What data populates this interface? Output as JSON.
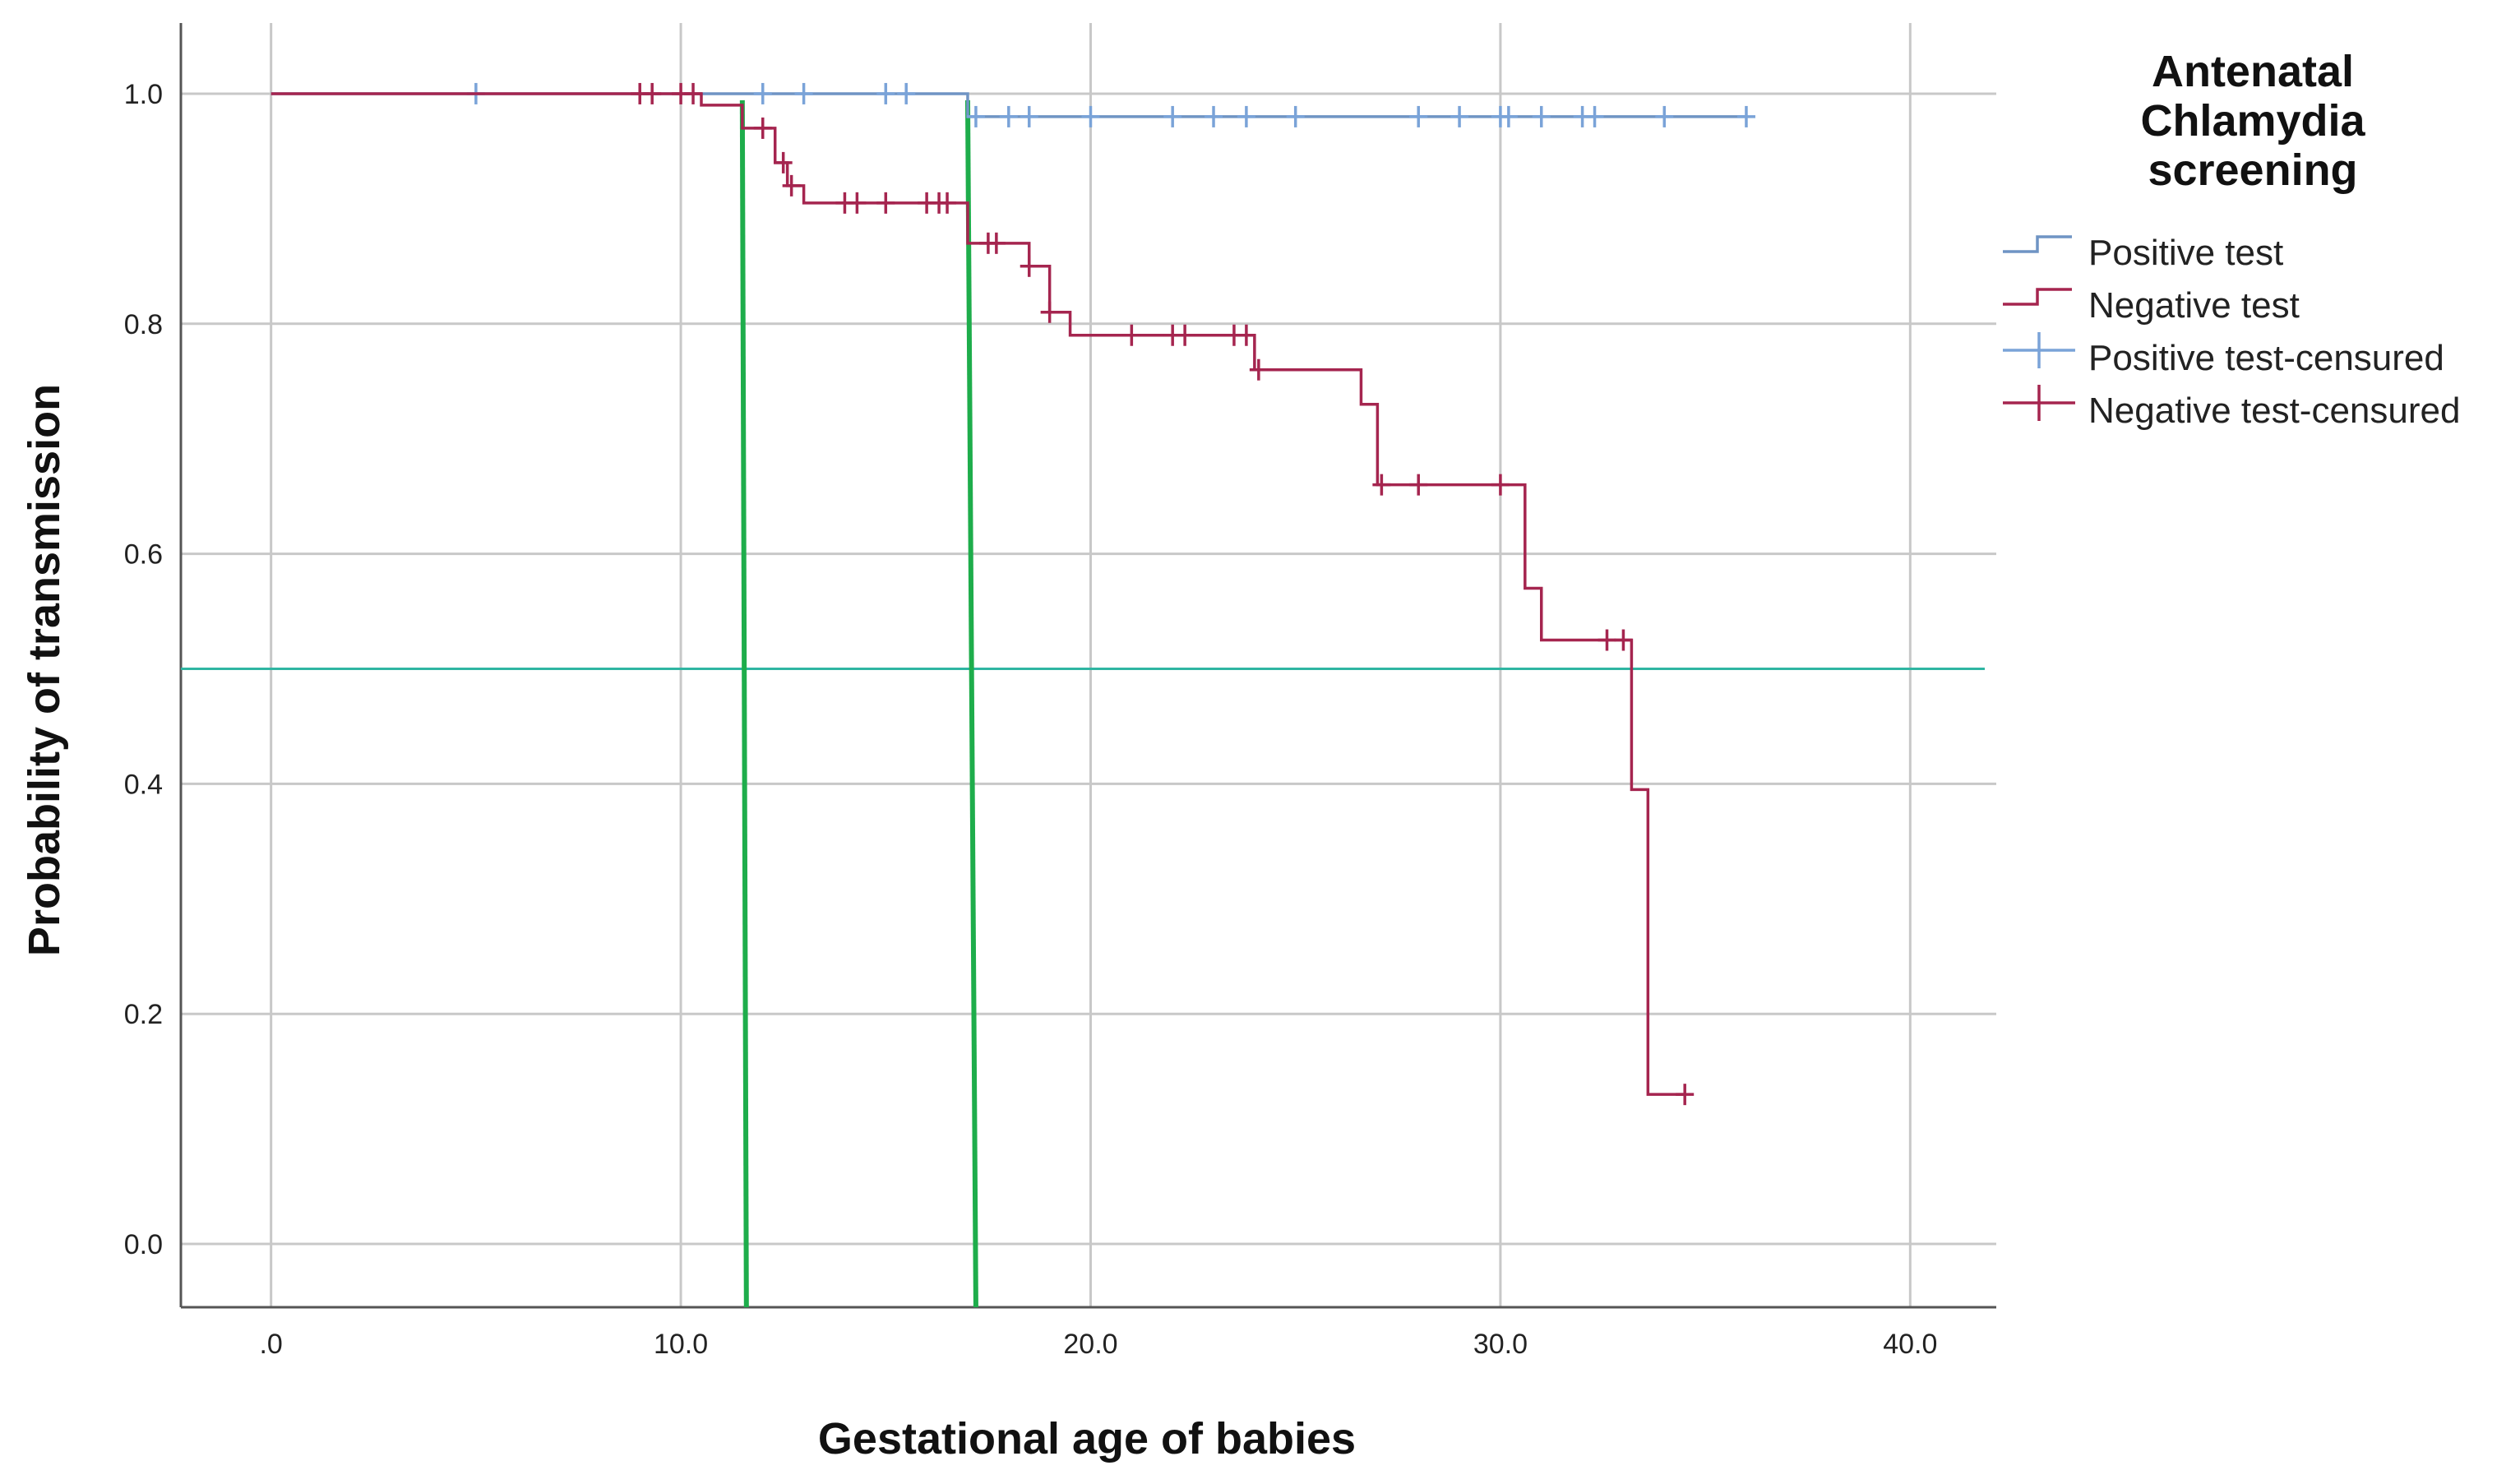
{
  "chart_data": {
    "type": "line",
    "subtype": "kaplan-meier",
    "xlabel": "Gestational age of babies",
    "ylabel": "Probability of transmission",
    "xlim": [
      -2.2,
      42.1
    ],
    "ylim": [
      -0.055,
      1.06
    ],
    "x_ticks": [
      0,
      10,
      20,
      30,
      40
    ],
    "x_tick_labels": [
      ".0",
      "10.0",
      "20.0",
      "30.0",
      "40.0"
    ],
    "y_ticks": [
      0.0,
      0.2,
      0.4,
      0.6,
      0.8,
      1.0
    ],
    "y_tick_labels": [
      "0.0",
      "0.2",
      "0.4",
      "0.6",
      "0.8",
      "1.0"
    ],
    "grid": true,
    "legend": {
      "title_lines": [
        "Antenatal",
        "Chlamydia",
        "screening"
      ],
      "placement": "right",
      "entries": [
        {
          "label": "Positive test",
          "kind": "step",
          "color": "#6f94c4"
        },
        {
          "label": "Negative test",
          "kind": "step",
          "color": "#a5254f"
        },
        {
          "label": "Positive test-censured",
          "kind": "censor",
          "color": "#7aa3d8"
        },
        {
          "label": "Negative test-censured",
          "kind": "censor",
          "color": "#a5254f"
        }
      ]
    },
    "series": [
      {
        "name": "Positive test",
        "color": "#6f94c4",
        "censor_color": "#7aa3d8",
        "steps": [
          [
            0,
            1.0
          ],
          [
            17.0,
            0.98
          ],
          [
            36.0,
            0.98
          ]
        ],
        "censored": [
          [
            5.0,
            1.0
          ],
          [
            12.0,
            1.0
          ],
          [
            13.0,
            1.0
          ],
          [
            15.0,
            1.0
          ],
          [
            15.5,
            1.0
          ],
          [
            17.2,
            0.98
          ],
          [
            18.0,
            0.98
          ],
          [
            18.5,
            0.98
          ],
          [
            20.0,
            0.98
          ],
          [
            22.0,
            0.98
          ],
          [
            23.0,
            0.98
          ],
          [
            23.8,
            0.98
          ],
          [
            25.0,
            0.98
          ],
          [
            28.0,
            0.98
          ],
          [
            29.0,
            0.98
          ],
          [
            30.0,
            0.98
          ],
          [
            30.2,
            0.98
          ],
          [
            31.0,
            0.98
          ],
          [
            32.0,
            0.98
          ],
          [
            32.3,
            0.98
          ],
          [
            34.0,
            0.98
          ],
          [
            36.0,
            0.98
          ]
        ]
      },
      {
        "name": "Negative test",
        "color": "#a5254f",
        "censor_color": "#a5254f",
        "steps": [
          [
            0,
            1.0
          ],
          [
            10.5,
            0.99
          ],
          [
            11.5,
            0.97
          ],
          [
            12.3,
            0.94
          ],
          [
            12.6,
            0.92
          ],
          [
            13.0,
            0.905
          ],
          [
            17.0,
            0.87
          ],
          [
            18.5,
            0.85
          ],
          [
            19.0,
            0.81
          ],
          [
            19.5,
            0.79
          ],
          [
            24.0,
            0.76
          ],
          [
            26.6,
            0.73
          ],
          [
            27.0,
            0.66
          ],
          [
            30.6,
            0.57
          ],
          [
            31.0,
            0.525
          ],
          [
            33.2,
            0.395
          ],
          [
            33.6,
            0.13
          ],
          [
            34.5,
            0.13
          ]
        ],
        "censored": [
          [
            9.0,
            1.0
          ],
          [
            9.3,
            1.0
          ],
          [
            10.0,
            1.0
          ],
          [
            10.3,
            1.0
          ],
          [
            12.0,
            0.97
          ],
          [
            12.5,
            0.94
          ],
          [
            12.7,
            0.92
          ],
          [
            14.0,
            0.905
          ],
          [
            14.3,
            0.905
          ],
          [
            15.0,
            0.905
          ],
          [
            16.0,
            0.905
          ],
          [
            16.3,
            0.905
          ],
          [
            16.5,
            0.905
          ],
          [
            17.5,
            0.87
          ],
          [
            17.7,
            0.87
          ],
          [
            18.5,
            0.85
          ],
          [
            19.0,
            0.81
          ],
          [
            21.0,
            0.79
          ],
          [
            22.0,
            0.79
          ],
          [
            22.3,
            0.79
          ],
          [
            23.5,
            0.79
          ],
          [
            23.8,
            0.79
          ],
          [
            24.1,
            0.76
          ],
          [
            27.1,
            0.66
          ],
          [
            28.0,
            0.66
          ],
          [
            30.0,
            0.66
          ],
          [
            32.6,
            0.525
          ],
          [
            33.0,
            0.525
          ],
          [
            34.5,
            0.13
          ]
        ]
      }
    ],
    "reference_lines": [
      {
        "name": "median-reference-line",
        "orientation": "horizontal",
        "y": 0.5,
        "color": "#2fb5a2"
      },
      {
        "name": "median-drop-line-1",
        "orientation": "vertical",
        "x_top": 11.5,
        "x_bottom": 11.6,
        "color": "#1ead4b"
      },
      {
        "name": "median-drop-line-2",
        "orientation": "vertical",
        "x_top": 17.0,
        "x_bottom": 17.2,
        "color": "#1ead4b"
      }
    ]
  }
}
